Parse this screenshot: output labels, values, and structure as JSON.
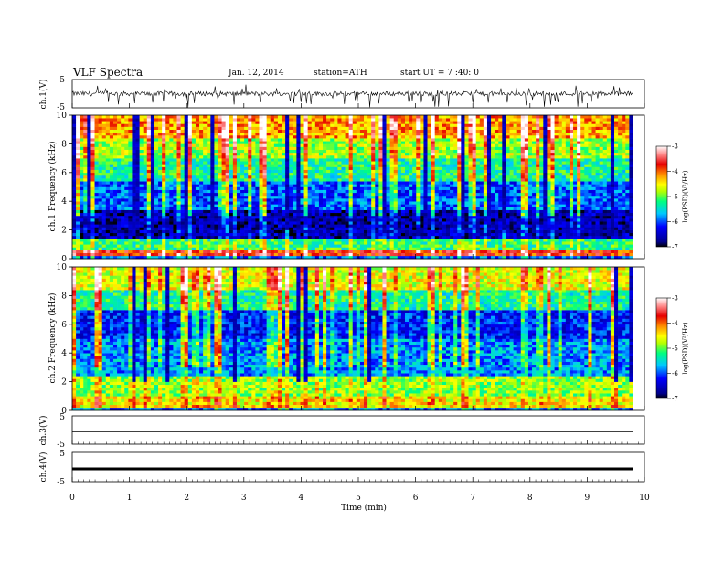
{
  "header": {
    "title": "VLF Spectra",
    "date": "Jan. 12, 2014",
    "station": "station=ATH",
    "start": "start UT = 7 :40: 0"
  },
  "colorbar": {
    "label": "log(PSD)(V²/Hz)",
    "ticks": [
      "-3",
      "-4",
      "-5",
      "-6",
      "-7"
    ]
  },
  "x_axis": {
    "label": "Time (min)",
    "ticks": [
      "0",
      "1",
      "2",
      "3",
      "4",
      "5",
      "6",
      "7",
      "8",
      "9",
      "10"
    ]
  },
  "chart_data": [
    {
      "type": "line",
      "title": "",
      "ylabel": "ch.1(V)",
      "ytick_labels": [
        "5",
        "-5"
      ],
      "ylim": [
        -5,
        5
      ],
      "xlim": [
        0,
        10
      ],
      "description_level": "noisy waveform centered near 0 V, amplitude ~ ±1 V with sporadic negative spikes"
    },
    {
      "type": "heatmap",
      "ylabel": "ch.1 Frequency (kHz)",
      "ytick_labels": [
        "0",
        "2",
        "4",
        "6",
        "8",
        "10"
      ],
      "ylim": [
        0,
        10
      ],
      "xlim": [
        0,
        9.8
      ],
      "zlim": [
        -7,
        -3
      ],
      "color_scale": [
        "#000080",
        "#0000ff",
        "#00c8ff",
        "#00ff80",
        "#c8ff00",
        "#ffff00",
        "#ff8000",
        "#e60000",
        "#ffc8c8"
      ],
      "bands_khz": [
        {
          "from": 0,
          "to": 0.3,
          "level": -6.0
        },
        {
          "from": 0.3,
          "to": 0.6,
          "level": -3.8
        },
        {
          "from": 0.6,
          "to": 1.5,
          "level": -5.2
        },
        {
          "from": 1.5,
          "to": 3.5,
          "level": -6.6
        },
        {
          "from": 3.5,
          "to": 5.5,
          "level": -6.0
        },
        {
          "from": 5.5,
          "to": 7.0,
          "level": -5.3
        },
        {
          "from": 7.0,
          "to": 8.5,
          "level": -4.8
        },
        {
          "from": 8.5,
          "to": 10,
          "level": -4.2
        }
      ]
    },
    {
      "type": "heatmap",
      "ylabel": "ch.2 Frequency (kHz)",
      "ytick_labels": [
        "0",
        "2",
        "4",
        "6",
        "8",
        "10"
      ],
      "ylim": [
        0,
        10
      ],
      "xlim": [
        0,
        9.8
      ],
      "zlim": [
        -7,
        -3
      ],
      "bands_khz": [
        {
          "from": 0,
          "to": 0.3,
          "level": -6.0
        },
        {
          "from": 0.3,
          "to": 1.0,
          "level": -4.5
        },
        {
          "from": 1.0,
          "to": 2.5,
          "level": -4.9
        },
        {
          "from": 2.5,
          "to": 5.0,
          "level": -5.8
        },
        {
          "from": 5.0,
          "to": 7.0,
          "level": -6.2
        },
        {
          "from": 7.0,
          "to": 8.5,
          "level": -5.3
        },
        {
          "from": 8.5,
          "to": 10,
          "level": -4.6
        }
      ]
    },
    {
      "type": "line",
      "ylabel": "ch.3(V)",
      "ytick_labels": [
        "5",
        "-5"
      ],
      "ylim": [
        -5,
        5
      ],
      "xlim": [
        0,
        10
      ],
      "constant_value": 0
    },
    {
      "type": "line",
      "ylabel": "ch.4(V)",
      "ytick_labels": [
        "5",
        "-5"
      ],
      "ylim": [
        -5,
        5
      ],
      "xlim": [
        0,
        10
      ],
      "constant_value": 0
    }
  ]
}
